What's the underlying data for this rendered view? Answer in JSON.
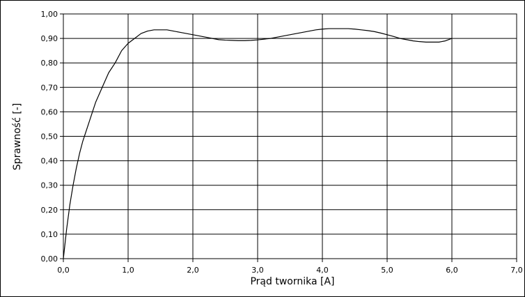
{
  "chart_data": {
    "type": "line",
    "title": "",
    "xlabel": "Prąd twornika [A]",
    "ylabel": "Sprawność [-]",
    "xlim": [
      0,
      7
    ],
    "ylim": [
      0,
      1
    ],
    "grid": true,
    "legend": "none",
    "x_ticks": [
      "0,0",
      "1,0",
      "2,0",
      "3,0",
      "4,0",
      "5,0",
      "6,0",
      "7,0"
    ],
    "y_ticks": [
      "0,00",
      "0,10",
      "0,20",
      "0,30",
      "0,40",
      "0,50",
      "0,60",
      "0,70",
      "0,80",
      "0,90",
      "1,00"
    ],
    "series": [
      {
        "color": "#000000",
        "x": [
          0,
          0.05,
          0.1,
          0.15,
          0.2,
          0.25,
          0.3,
          0.4,
          0.5,
          0.6,
          0.7,
          0.8,
          0.9,
          1.0,
          1.1,
          1.2,
          1.3,
          1.4,
          1.5,
          1.6,
          1.7,
          1.8,
          1.9,
          2.0,
          2.1,
          2.2,
          2.3,
          2.4,
          2.5,
          2.6,
          2.7,
          2.8,
          2.9,
          3.0,
          3.1,
          3.2,
          3.3,
          3.4,
          3.5,
          3.6,
          3.7,
          3.8,
          3.9,
          4.0,
          4.1,
          4.2,
          4.3,
          4.4,
          4.5,
          4.6,
          4.7,
          4.8,
          4.9,
          5.0,
          5.1,
          5.2,
          5.3,
          5.4,
          5.5,
          5.6,
          5.7,
          5.8,
          5.9,
          6.0
        ],
        "y": [
          0.0,
          0.12,
          0.22,
          0.3,
          0.37,
          0.43,
          0.48,
          0.56,
          0.64,
          0.7,
          0.76,
          0.8,
          0.85,
          0.88,
          0.9,
          0.92,
          0.93,
          0.935,
          0.935,
          0.935,
          0.93,
          0.925,
          0.92,
          0.915,
          0.91,
          0.905,
          0.9,
          0.895,
          0.893,
          0.892,
          0.891,
          0.891,
          0.892,
          0.894,
          0.897,
          0.9,
          0.905,
          0.91,
          0.915,
          0.92,
          0.925,
          0.93,
          0.935,
          0.938,
          0.94,
          0.94,
          0.94,
          0.94,
          0.938,
          0.935,
          0.932,
          0.928,
          0.922,
          0.915,
          0.908,
          0.9,
          0.895,
          0.89,
          0.887,
          0.885,
          0.885,
          0.885,
          0.89,
          0.9
        ]
      }
    ]
  }
}
